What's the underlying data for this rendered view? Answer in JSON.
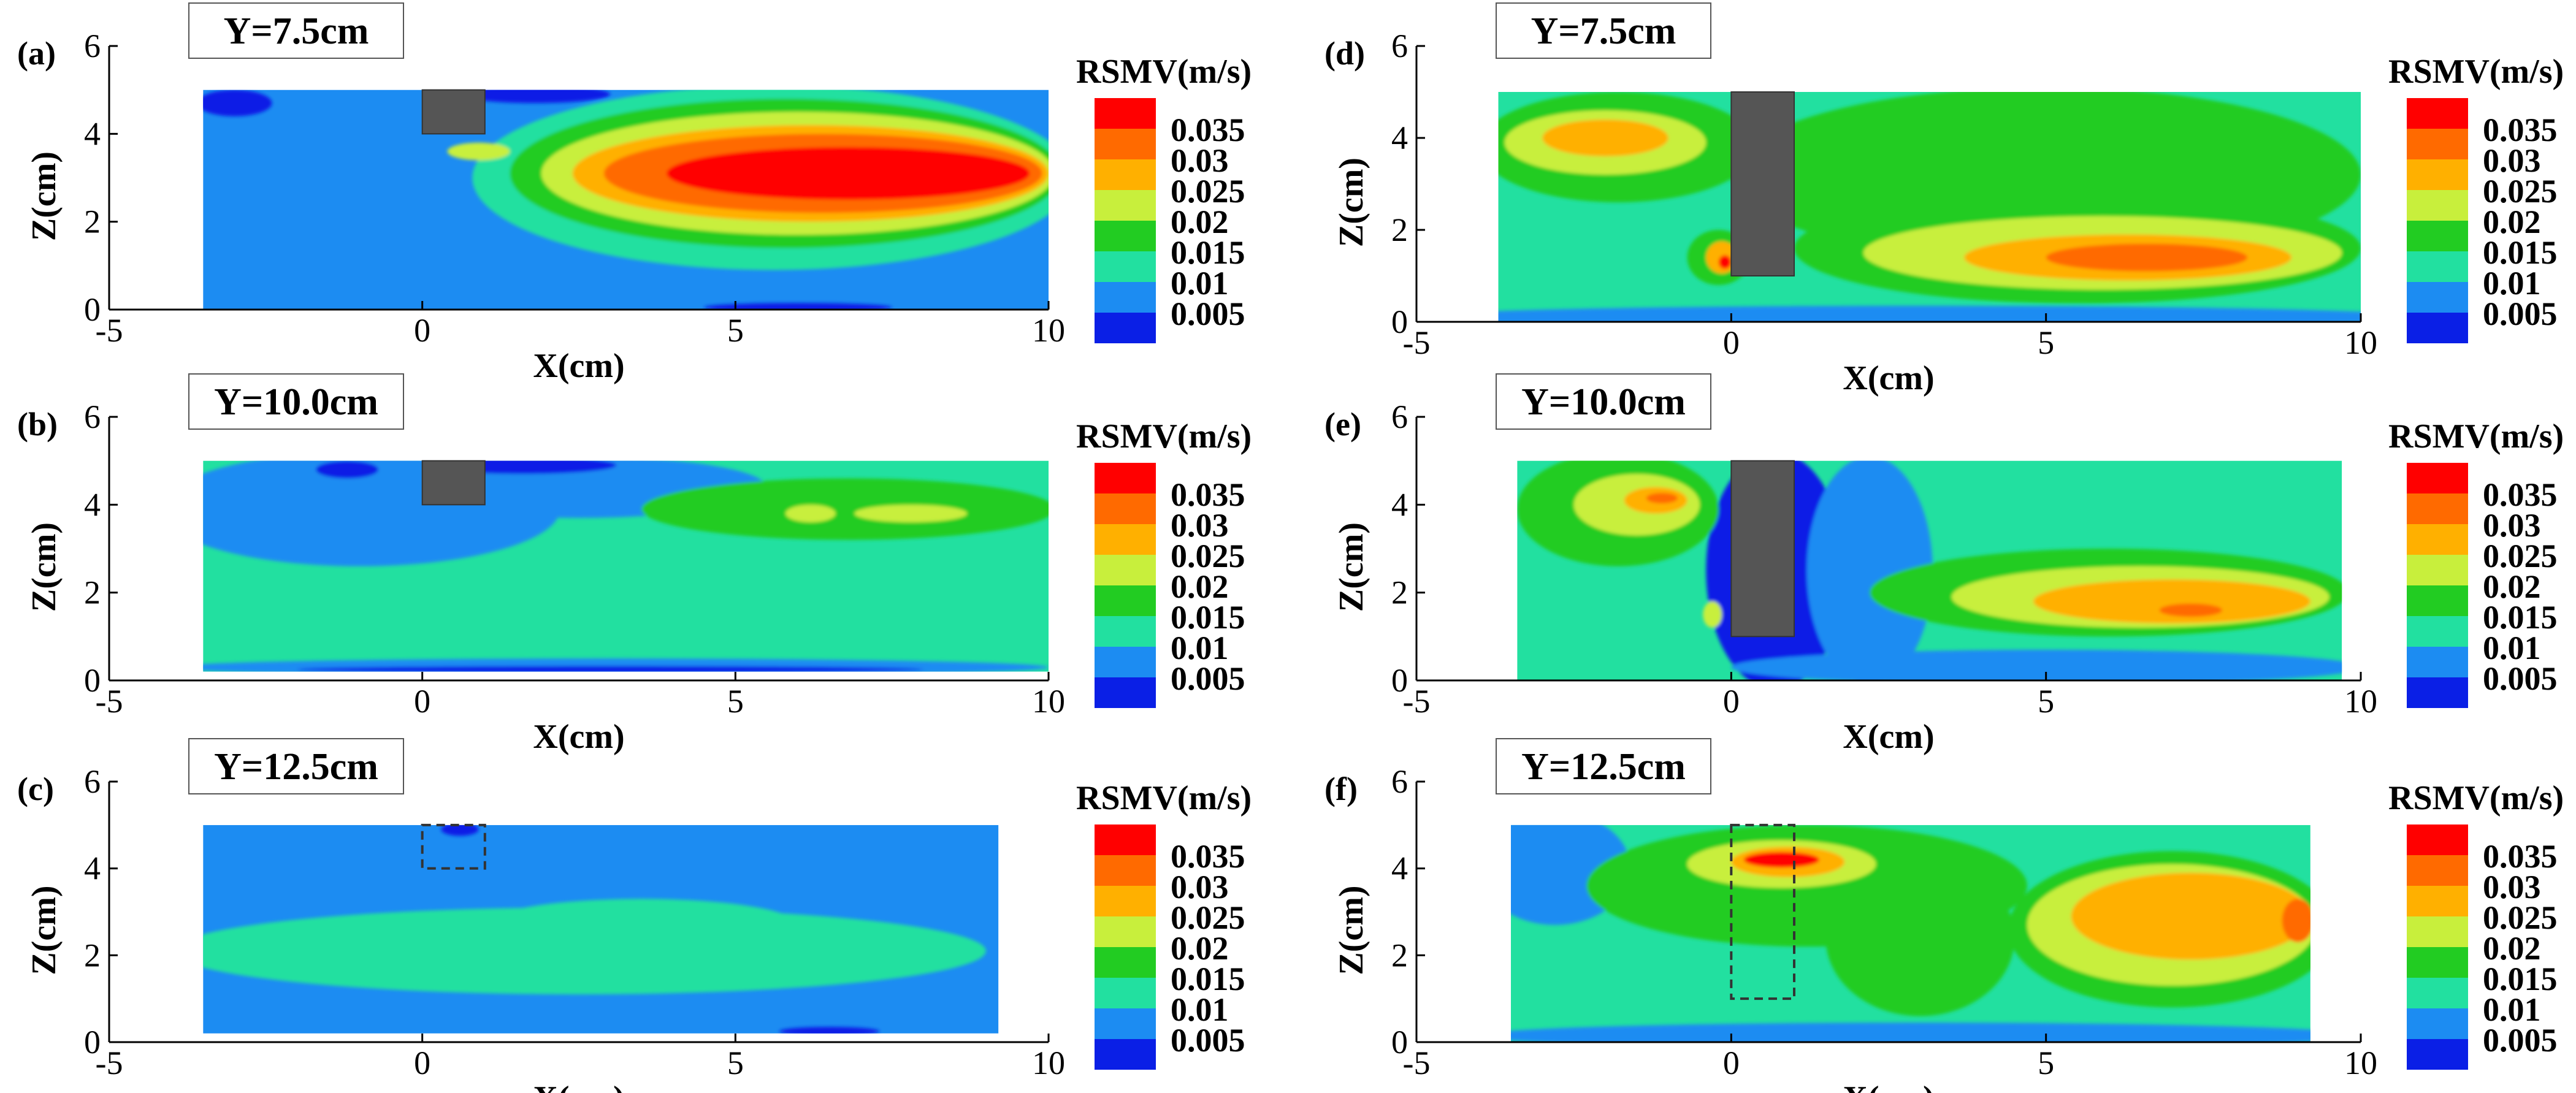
{
  "figure_title": "",
  "colors": {
    "levels": [
      "#0a1fe6",
      "#1c8cf2",
      "#22e0a0",
      "#22cc22",
      "#c8ef3c",
      "#ffb000",
      "#ff6a00",
      "#ff0000"
    ],
    "solid": "#555555",
    "outline": "#000000"
  },
  "chart_data": [
    {
      "type": "heatmap",
      "panel": "(a)",
      "title": "Y=7.5cm",
      "xlabel": "X(cm)",
      "ylabel": "Z(cm)",
      "xlim": [
        -5,
        10
      ],
      "ylim": [
        0,
        6
      ],
      "xticks": [
        "-5",
        "0",
        "5",
        "10"
      ],
      "yticks": [
        "0",
        "2",
        "4",
        "6"
      ],
      "domain_x": [
        -3.5,
        10
      ],
      "domain_z": [
        0,
        5
      ],
      "obstacle": {
        "x": [
          0,
          1
        ],
        "z": [
          4,
          5
        ],
        "style": "solid"
      },
      "legend_title": "RSMV(m/s)",
      "legend_values": [
        "0.035",
        "0.03",
        "0.025",
        "0.02",
        "0.015",
        "0.01",
        "0.005"
      ],
      "background_level": 1,
      "blobs": [
        {
          "level": 0,
          "cx": -3.0,
          "cz": 4.7,
          "rx": 0.6,
          "rz": 0.3
        },
        {
          "level": 0,
          "cx": 1.8,
          "cz": 4.9,
          "rx": 1.2,
          "rz": 0.2
        },
        {
          "level": 2,
          "cx": 5.6,
          "cz": 3.0,
          "rx": 4.8,
          "rz": 2.1
        },
        {
          "level": 3,
          "cx": 5.8,
          "cz": 3.1,
          "rx": 4.4,
          "rz": 1.7
        },
        {
          "level": 4,
          "cx": 6.0,
          "cz": 3.1,
          "rx": 4.1,
          "rz": 1.4
        },
        {
          "level": 5,
          "cx": 6.2,
          "cz": 3.1,
          "rx": 3.8,
          "rz": 1.1
        },
        {
          "level": 6,
          "cx": 6.4,
          "cz": 3.1,
          "rx": 3.5,
          "rz": 0.9
        },
        {
          "level": 7,
          "cx": 6.8,
          "cz": 3.1,
          "rx": 2.9,
          "rz": 0.6
        },
        {
          "level": 4,
          "cx": 0.9,
          "cz": 3.6,
          "rx": 0.5,
          "rz": 0.2
        },
        {
          "level": 0,
          "cx": 6.0,
          "cz": 0.05,
          "rx": 1.5,
          "rz": 0.1
        }
      ]
    },
    {
      "type": "heatmap",
      "panel": "(b)",
      "title": "Y=10.0cm",
      "xlabel": "X(cm)",
      "ylabel": "Z(cm)",
      "xlim": [
        -5,
        10
      ],
      "ylim": [
        0,
        6
      ],
      "xticks": [
        "-5",
        "0",
        "5",
        "10"
      ],
      "yticks": [
        "0",
        "2",
        "4",
        "6"
      ],
      "domain_x": [
        -3.5,
        10
      ],
      "domain_z": [
        0.2,
        5
      ],
      "obstacle": {
        "x": [
          0,
          1
        ],
        "z": [
          4,
          5
        ],
        "style": "solid"
      },
      "legend_title": "RSMV(m/s)",
      "legend_values": [
        "0.035",
        "0.03",
        "0.025",
        "0.02",
        "0.015",
        "0.01",
        "0.005"
      ],
      "background_level": 2,
      "blobs": [
        {
          "level": 1,
          "cx": -1.0,
          "cz": 3.9,
          "rx": 3.2,
          "rz": 1.3
        },
        {
          "level": 1,
          "cx": 2.5,
          "cz": 4.4,
          "rx": 3.0,
          "rz": 0.7
        },
        {
          "level": 0,
          "cx": 1.6,
          "cz": 4.9,
          "rx": 1.5,
          "rz": 0.2
        },
        {
          "level": 0,
          "cx": -1.2,
          "cz": 4.8,
          "rx": 0.5,
          "rz": 0.2
        },
        {
          "level": 3,
          "cx": 6.8,
          "cz": 3.9,
          "rx": 3.3,
          "rz": 0.7
        },
        {
          "level": 4,
          "cx": 6.2,
          "cz": 3.8,
          "rx": 0.4,
          "rz": 0.2
        },
        {
          "level": 4,
          "cx": 7.8,
          "cz": 3.8,
          "rx": 0.9,
          "rz": 0.2
        },
        {
          "level": 1,
          "cx": 3.0,
          "cz": 0.3,
          "rx": 7.0,
          "rz": 0.2
        },
        {
          "level": 0,
          "cx": 3.0,
          "cz": 0.25,
          "rx": 5.0,
          "rz": 0.08
        }
      ]
    },
    {
      "type": "heatmap",
      "panel": "(c)",
      "title": "Y=12.5cm",
      "xlabel": "X(cm)",
      "ylabel": "Z(cm)",
      "xlim": [
        -5,
        10
      ],
      "ylim": [
        0,
        6
      ],
      "xticks": [
        "-5",
        "0",
        "5",
        "10"
      ],
      "yticks": [
        "0",
        "2",
        "4",
        "6"
      ],
      "domain_x": [
        -3.5,
        9.2
      ],
      "domain_z": [
        0.2,
        5
      ],
      "obstacle": {
        "x": [
          0,
          1
        ],
        "z": [
          4,
          5
        ],
        "style": "dashed"
      },
      "legend_title": "RSMV(m/s)",
      "legend_values": [
        "0.035",
        "0.03",
        "0.025",
        "0.02",
        "0.015",
        "0.01",
        "0.005"
      ],
      "background_level": 1,
      "blobs": [
        {
          "level": 2,
          "cx": 2.5,
          "cz": 2.1,
          "rx": 6.5,
          "rz": 1.0
        },
        {
          "level": 2,
          "cx": 3.5,
          "cz": 2.7,
          "rx": 2.5,
          "rz": 0.6
        },
        {
          "level": 0,
          "cx": 0.6,
          "cz": 4.9,
          "rx": 0.3,
          "rz": 0.15
        },
        {
          "level": 0,
          "cx": 6.5,
          "cz": 0.25,
          "rx": 0.8,
          "rz": 0.1
        }
      ]
    },
    {
      "type": "heatmap",
      "panel": "(d)",
      "title": "Y=7.5cm",
      "xlabel": "X(cm)",
      "ylabel": "Z(cm)",
      "xlim": [
        -5,
        10
      ],
      "ylim": [
        0,
        6
      ],
      "xticks": [
        "-5",
        "0",
        "5",
        "10"
      ],
      "yticks": [
        "0",
        "2",
        "4",
        "6"
      ],
      "domain_x": [
        -3.7,
        10
      ],
      "domain_z": [
        0,
        5
      ],
      "obstacle": {
        "x": [
          0,
          1
        ],
        "z": [
          1,
          5
        ],
        "style": "solid"
      },
      "legend_title": "RSMV(m/s)",
      "legend_values": [
        "0.035",
        "0.03",
        "0.025",
        "0.02",
        "0.015",
        "0.01",
        "0.005"
      ],
      "background_level": 2,
      "blobs": [
        {
          "level": 3,
          "cx": -1.8,
          "cz": 3.8,
          "rx": 2.2,
          "rz": 1.2
        },
        {
          "level": 4,
          "cx": -2.0,
          "cz": 3.9,
          "rx": 1.6,
          "rz": 0.7
        },
        {
          "level": 5,
          "cx": -2.0,
          "cz": 4.0,
          "rx": 1.0,
          "rz": 0.4
        },
        {
          "level": 3,
          "cx": 5.0,
          "cz": 3.2,
          "rx": 5.0,
          "rz": 1.9
        },
        {
          "level": 3,
          "cx": 5.5,
          "cz": 1.6,
          "rx": 4.5,
          "rz": 1.2
        },
        {
          "level": 4,
          "cx": 5.9,
          "cz": 1.5,
          "rx": 3.8,
          "rz": 0.8
        },
        {
          "level": 5,
          "cx": 6.3,
          "cz": 1.4,
          "rx": 2.6,
          "rz": 0.5
        },
        {
          "level": 6,
          "cx": 6.6,
          "cz": 1.4,
          "rx": 1.6,
          "rz": 0.3
        },
        {
          "level": 3,
          "cx": -0.2,
          "cz": 1.4,
          "rx": 0.5,
          "rz": 0.6
        },
        {
          "level": 5,
          "cx": -0.15,
          "cz": 1.4,
          "rx": 0.25,
          "rz": 0.35
        },
        {
          "level": 7,
          "cx": -0.1,
          "cz": 1.3,
          "rx": 0.1,
          "rz": 0.15
        },
        {
          "level": 1,
          "cx": 3.0,
          "cz": 0.1,
          "rx": 8.0,
          "rz": 0.25
        }
      ]
    },
    {
      "type": "heatmap",
      "panel": "(e)",
      "title": "Y=10.0cm",
      "xlabel": "X(cm)",
      "ylabel": "Z(cm)",
      "xlim": [
        -5,
        10
      ],
      "ylim": [
        0,
        6
      ],
      "xticks": [
        "-5",
        "0",
        "5",
        "10"
      ],
      "yticks": [
        "0",
        "2",
        "4",
        "6"
      ],
      "domain_x": [
        -3.4,
        9.7
      ],
      "domain_z": [
        0,
        5
      ],
      "obstacle": {
        "x": [
          0,
          1
        ],
        "z": [
          1,
          5
        ],
        "style": "solid"
      },
      "legend_title": "RSMV(m/s)",
      "legend_values": [
        "0.035",
        "0.03",
        "0.025",
        "0.02",
        "0.015",
        "0.01",
        "0.005"
      ],
      "background_level": 2,
      "blobs": [
        {
          "level": 0,
          "cx": 0.7,
          "cz": 2.5,
          "rx": 1.1,
          "rz": 2.7
        },
        {
          "level": 1,
          "cx": 2.2,
          "cz": 2.5,
          "rx": 1.0,
          "rz": 2.6
        },
        {
          "level": 1,
          "cx": 5.0,
          "cz": 0.3,
          "rx": 5.0,
          "rz": 0.4
        },
        {
          "level": 3,
          "cx": -1.8,
          "cz": 3.9,
          "rx": 1.6,
          "rz": 1.3
        },
        {
          "level": 4,
          "cx": -1.5,
          "cz": 4.0,
          "rx": 1.0,
          "rz": 0.7
        },
        {
          "level": 5,
          "cx": -1.2,
          "cz": 4.1,
          "rx": 0.5,
          "rz": 0.3
        },
        {
          "level": 6,
          "cx": -1.1,
          "cz": 4.15,
          "rx": 0.25,
          "rz": 0.12
        },
        {
          "level": 3,
          "cx": 6.0,
          "cz": 2.0,
          "rx": 3.8,
          "rz": 1.0
        },
        {
          "level": 4,
          "cx": 6.5,
          "cz": 1.9,
          "rx": 3.0,
          "rz": 0.7
        },
        {
          "level": 5,
          "cx": 7.0,
          "cz": 1.8,
          "rx": 2.2,
          "rz": 0.5
        },
        {
          "level": 6,
          "cx": 7.3,
          "cz": 1.6,
          "rx": 0.5,
          "rz": 0.15
        },
        {
          "level": 4,
          "cx": -0.3,
          "cz": 1.5,
          "rx": 0.15,
          "rz": 0.3
        }
      ]
    },
    {
      "type": "heatmap",
      "panel": "(f)",
      "title": "Y=12.5cm",
      "xlabel": "X(cm)",
      "ylabel": "Z(cm)",
      "xlim": [
        -5,
        10
      ],
      "ylim": [
        0,
        6
      ],
      "xticks": [
        "-5",
        "0",
        "5",
        "10"
      ],
      "yticks": [
        "0",
        "2",
        "4",
        "6"
      ],
      "domain_x": [
        -3.5,
        9.2
      ],
      "domain_z": [
        0,
        5
      ],
      "obstacle": {
        "x": [
          0,
          1
        ],
        "z": [
          1,
          5
        ],
        "style": "dashed"
      },
      "legend_title": "RSMV(m/s)",
      "legend_values": [
        "0.035",
        "0.03",
        "0.025",
        "0.02",
        "0.015",
        "0.01",
        "0.005"
      ],
      "background_level": 2,
      "blobs": [
        {
          "level": 1,
          "cx": -2.8,
          "cz": 4.0,
          "rx": 1.2,
          "rz": 1.3
        },
        {
          "level": 1,
          "cx": 3.0,
          "cz": 0.15,
          "rx": 7.0,
          "rz": 0.3
        },
        {
          "level": 3,
          "cx": 1.2,
          "cz": 3.6,
          "rx": 3.5,
          "rz": 1.4
        },
        {
          "level": 3,
          "cx": 3.0,
          "cz": 2.4,
          "rx": 1.5,
          "rz": 1.8
        },
        {
          "level": 3,
          "cx": 7.0,
          "cz": 2.6,
          "rx": 2.6,
          "rz": 1.8
        },
        {
          "level": 4,
          "cx": 0.8,
          "cz": 4.1,
          "rx": 1.5,
          "rz": 0.55
        },
        {
          "level": 5,
          "cx": 0.9,
          "cz": 4.15,
          "rx": 0.9,
          "rz": 0.35
        },
        {
          "level": 7,
          "cx": 0.8,
          "cz": 4.2,
          "rx": 0.6,
          "rz": 0.18
        },
        {
          "level": 4,
          "cx": 7.0,
          "cz": 2.7,
          "rx": 2.3,
          "rz": 1.4
        },
        {
          "level": 5,
          "cx": 7.3,
          "cz": 2.9,
          "rx": 1.9,
          "rz": 1.0
        },
        {
          "level": 6,
          "cx": 9.0,
          "cz": 2.8,
          "rx": 0.25,
          "rz": 0.5
        }
      ]
    }
  ]
}
